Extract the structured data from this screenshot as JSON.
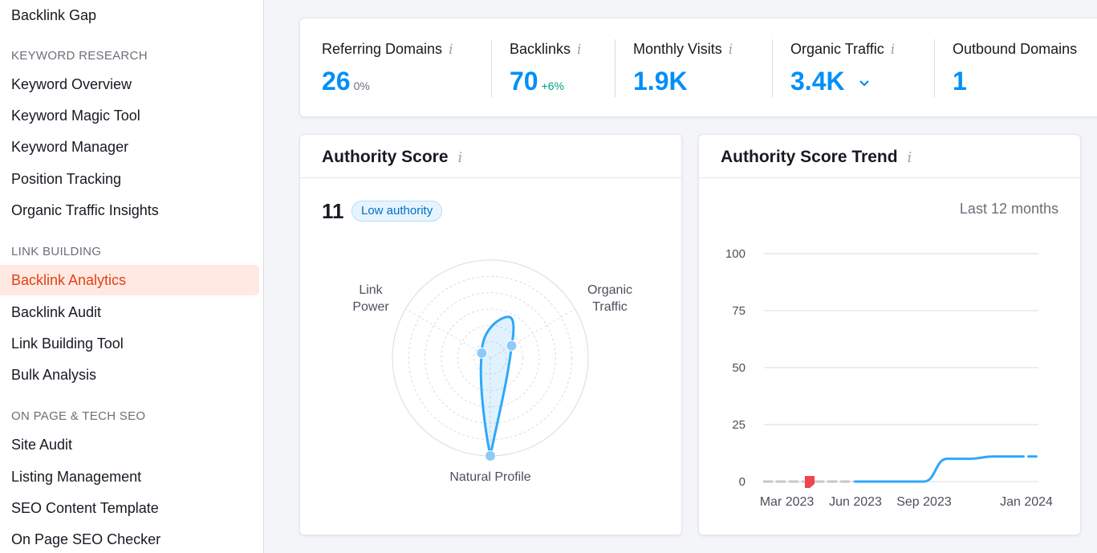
{
  "sidebar": {
    "top_item": "Backlink Gap",
    "sections": [
      {
        "title": "KEYWORD RESEARCH",
        "items": [
          "Keyword Overview",
          "Keyword Magic Tool",
          "Keyword Manager",
          "Position Tracking",
          "Organic Traffic Insights"
        ]
      },
      {
        "title": "LINK BUILDING",
        "items": [
          "Backlink Analytics",
          "Backlink Audit",
          "Link Building Tool",
          "Bulk Analysis"
        ]
      },
      {
        "title": "ON PAGE & TECH SEO",
        "items": [
          "Site Audit",
          "Listing Management",
          "SEO Content Template",
          "On Page SEO Checker"
        ]
      }
    ],
    "active_item": "Backlink Analytics"
  },
  "metrics": [
    {
      "label": "Referring Domains",
      "value": "26",
      "change": "0%"
    },
    {
      "label": "Backlinks",
      "value": "70",
      "change": "+6%"
    },
    {
      "label": "Monthly Visits",
      "value": "1.9K",
      "change": ""
    },
    {
      "label": "Organic Traffic",
      "value": "3.4K",
      "change": ""
    },
    {
      "label": "Outbound Domains",
      "value": "1",
      "change": ""
    }
  ],
  "info_glyph": "i",
  "authority_card": {
    "title": "Authority Score",
    "score": "11",
    "badge": "Low authority",
    "radar_labels": {
      "link_power": [
        "Link",
        "Power"
      ],
      "organic_traffic": [
        "Organic",
        "Traffic"
      ],
      "natural_profile": "Natural Profile"
    },
    "radar_values": {
      "link_power": 0.1,
      "organic_traffic": 0.25,
      "natural_profile": 1.0
    }
  },
  "trend_card": {
    "title": "Authority Score Trend",
    "period": "Last 12 months"
  },
  "chart_data": {
    "type": "line",
    "title": "Authority Score Trend",
    "x_ticks": [
      "Mar 2023",
      "Jun 2023",
      "Sep 2023",
      "Jan 2024"
    ],
    "y_ticks": [
      0,
      25,
      50,
      75,
      100
    ],
    "ylim": [
      0,
      100
    ],
    "series": [
      {
        "x": [
          "Feb 2023",
          "Mar 2023",
          "Apr 2023",
          "May 2023",
          "Jun 2023"
        ],
        "values": [
          0,
          0,
          0,
          0,
          0
        ],
        "style": "dashed-gray"
      },
      {
        "x": [
          "Jun 2023",
          "Jul 2023",
          "Aug 2023",
          "Sep 2023",
          "Oct 2023",
          "Nov 2023",
          "Dec 2023",
          "Jan 2024"
        ],
        "values": [
          0,
          0,
          0,
          0,
          10,
          10,
          11,
          11
        ],
        "style": "solid-blue"
      },
      {
        "x": [
          "Jan 2024",
          "Feb 2024"
        ],
        "values": [
          11,
          11
        ],
        "style": "dashed-blue"
      }
    ],
    "marker": {
      "x": "Apr 2023",
      "y": 0,
      "color": "#f0454f"
    },
    "grid": true,
    "colors": {
      "line": "#2ea8f8",
      "grid": "#d9dbe2",
      "projection": "#c5c7cf"
    }
  }
}
